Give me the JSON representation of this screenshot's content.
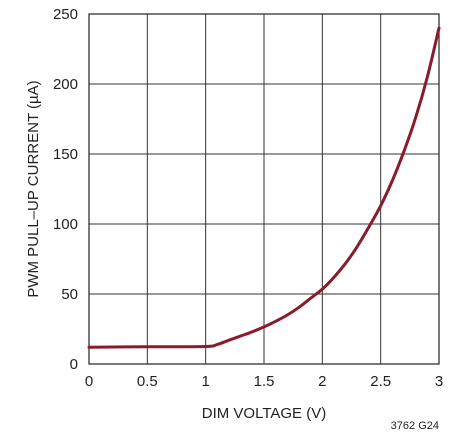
{
  "chart_data": {
    "type": "line",
    "title": "",
    "xlabel": "DIM VOLTAGE (V)",
    "ylabel": "PWM PULL–UP CURRENT (µA)",
    "xlim": [
      0,
      3
    ],
    "ylim": [
      0,
      250
    ],
    "xticks": [
      0,
      0.5,
      1,
      1.5,
      2,
      2.5,
      3
    ],
    "xtick_labels": [
      "0",
      "0.5",
      "1",
      "1.5",
      "2",
      "2.5",
      "3"
    ],
    "yticks": [
      0,
      50,
      100,
      150,
      200,
      250
    ],
    "ytick_labels": [
      "0",
      "50",
      "100",
      "150",
      "200",
      "250"
    ],
    "grid": true,
    "legend": "none",
    "annotation": "3762 G24",
    "series": [
      {
        "color": "#8b1a2b",
        "x": [
          0,
          0.5,
          1.0,
          1.1,
          1.2,
          1.3,
          1.4,
          1.5,
          1.6,
          1.7,
          1.8,
          1.9,
          2.0,
          2.1,
          2.2,
          2.3,
          2.4,
          2.5,
          2.6,
          2.7,
          2.8,
          2.9,
          3.0
        ],
        "y": [
          12,
          12.3,
          12.5,
          14,
          17,
          20,
          23,
          26.5,
          30.5,
          35,
          40.5,
          47,
          53.5,
          62,
          72,
          84,
          98,
          113,
          131,
          152,
          176,
          205,
          240
        ]
      }
    ]
  }
}
